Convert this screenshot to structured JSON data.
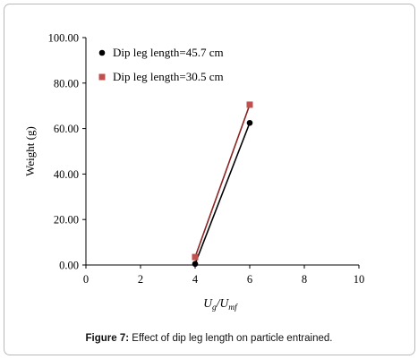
{
  "chart_data": {
    "type": "line",
    "xlabel_base": "U",
    "xlabel_sub1": "g",
    "xlabel_slash": "/U",
    "xlabel_sub2": "mf",
    "ylabel": "Weight (g)",
    "xlim": [
      0,
      10
    ],
    "ylim": [
      0,
      100
    ],
    "xticks": [
      "0",
      "2",
      "4",
      "6",
      "8",
      "10"
    ],
    "yticks": [
      "0.00",
      "20.00",
      "40.00",
      "60.00",
      "80.00",
      "100.00"
    ],
    "legend_position": "top-left",
    "grid": false,
    "series": [
      {
        "name": "Dip leg length=45.7 cm",
        "marker": "circle",
        "color": "#000000",
        "line_color": "#000000",
        "x": [
          4,
          6
        ],
        "y": [
          0.5,
          62.5
        ]
      },
      {
        "name": "Dip leg length=30.5 cm",
        "marker": "square",
        "color": "#c0504d",
        "line_color": "#8b2323",
        "x": [
          4,
          6
        ],
        "y": [
          3.5,
          70.5
        ]
      }
    ]
  },
  "caption": {
    "label": "Figure 7:",
    "text": " Effect of dip leg length on particle entrained."
  }
}
